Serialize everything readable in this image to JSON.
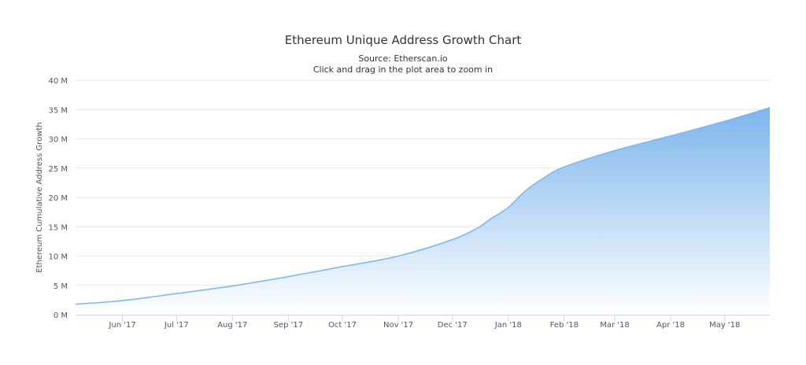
{
  "chart_data": {
    "type": "area",
    "title": "Ethereum Unique Address Growth Chart",
    "subtitle": "Source: Etherscan.io",
    "subtitle2": "Click and drag in the plot area to zoom in",
    "xlabel": "",
    "ylabel": "Ethereum Cumulative Address Growth",
    "ylim": [
      0,
      40000000
    ],
    "yticks": [
      0,
      5000000,
      10000000,
      15000000,
      20000000,
      25000000,
      30000000,
      35000000,
      40000000
    ],
    "ytick_labels": [
      "0 M",
      "5 M",
      "10 M",
      "15 M",
      "20 M",
      "25 M",
      "30 M",
      "35 M",
      "40 M"
    ],
    "xlim": [
      "2017-05-06",
      "2018-05-26"
    ],
    "xticks": [
      "2017-06-01",
      "2017-07-01",
      "2017-08-01",
      "2017-09-01",
      "2017-10-01",
      "2017-11-01",
      "2017-12-01",
      "2018-01-01",
      "2018-02-01",
      "2018-03-01",
      "2018-04-01",
      "2018-05-01"
    ],
    "xtick_labels": [
      "Jun '17",
      "Jul '17",
      "Aug '17",
      "Sep '17",
      "Oct '17",
      "Nov '17",
      "Dec '17",
      "Jan '18",
      "Feb '18",
      "Mar '18",
      "Apr '18",
      "May '18"
    ],
    "grid": true,
    "colors": {
      "line": "#7cb5ec",
      "fill_top": "#7cb5ec",
      "fill_bottom": "#ffffff",
      "grid": "#e6e6e6"
    },
    "points": [
      [
        "2017-05-06",
        1800000
      ],
      [
        "2017-06-01",
        2400000
      ],
      [
        "2017-07-01",
        3600000
      ],
      [
        "2017-08-01",
        4900000
      ],
      [
        "2017-09-01",
        6500000
      ],
      [
        "2017-10-01",
        8200000
      ],
      [
        "2017-11-01",
        10000000
      ],
      [
        "2017-12-01",
        12800000
      ],
      [
        "2017-12-15",
        14800000
      ],
      [
        "2017-12-22",
        16300000
      ],
      [
        "2018-01-01",
        18300000
      ],
      [
        "2018-01-10",
        21000000
      ],
      [
        "2018-01-20",
        23200000
      ],
      [
        "2018-02-01",
        25200000
      ],
      [
        "2018-03-01",
        28000000
      ],
      [
        "2018-04-01",
        30500000
      ],
      [
        "2018-05-01",
        33000000
      ],
      [
        "2018-05-26",
        35300000
      ]
    ]
  }
}
